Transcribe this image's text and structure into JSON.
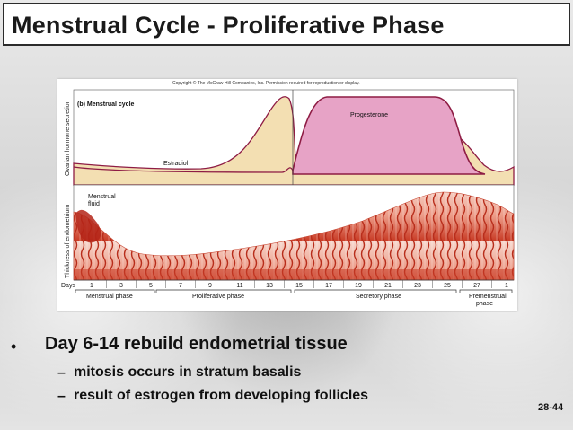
{
  "slide": {
    "title": "Menstrual Cycle - Proliferative Phase",
    "slide_number": "28-44"
  },
  "figure": {
    "copyright": "Copyright © The McGraw-Hill Companies, Inc. Permission required for reproduction or display.",
    "panel_label": "(b) Menstrual cycle",
    "y_axis_top": "Ovarian hormone secretion",
    "y_axis_bottom": "Thickness of endometrium",
    "hormones": {
      "progesterone": "Progesterone",
      "estradiol": "Estradiol"
    },
    "menstrual_fluid": "Menstrual\nfluid",
    "days_label": "Days",
    "days": [
      "1",
      "3",
      "5",
      "7",
      "9",
      "11",
      "13",
      "15",
      "17",
      "19",
      "21",
      "23",
      "25",
      "27",
      "1"
    ],
    "phases": {
      "menstrual": "Menstrual phase",
      "proliferative": "Proliferative phase",
      "secretory": "Secretory phase",
      "premenstrual": "Premenstrual\nphase"
    },
    "colors": {
      "estradiol_fill": "#f3dfb2",
      "progesterone_fill": "#e7a3c6",
      "curve_line": "#8e1c44",
      "endometrium": "#d9472b"
    }
  },
  "bullets": {
    "main": "Day 6-14 rebuild endometrial tissue",
    "subs": [
      "mitosis occurs in stratum basalis",
      "result of estrogen from developing follicles"
    ],
    "dash": "–"
  }
}
